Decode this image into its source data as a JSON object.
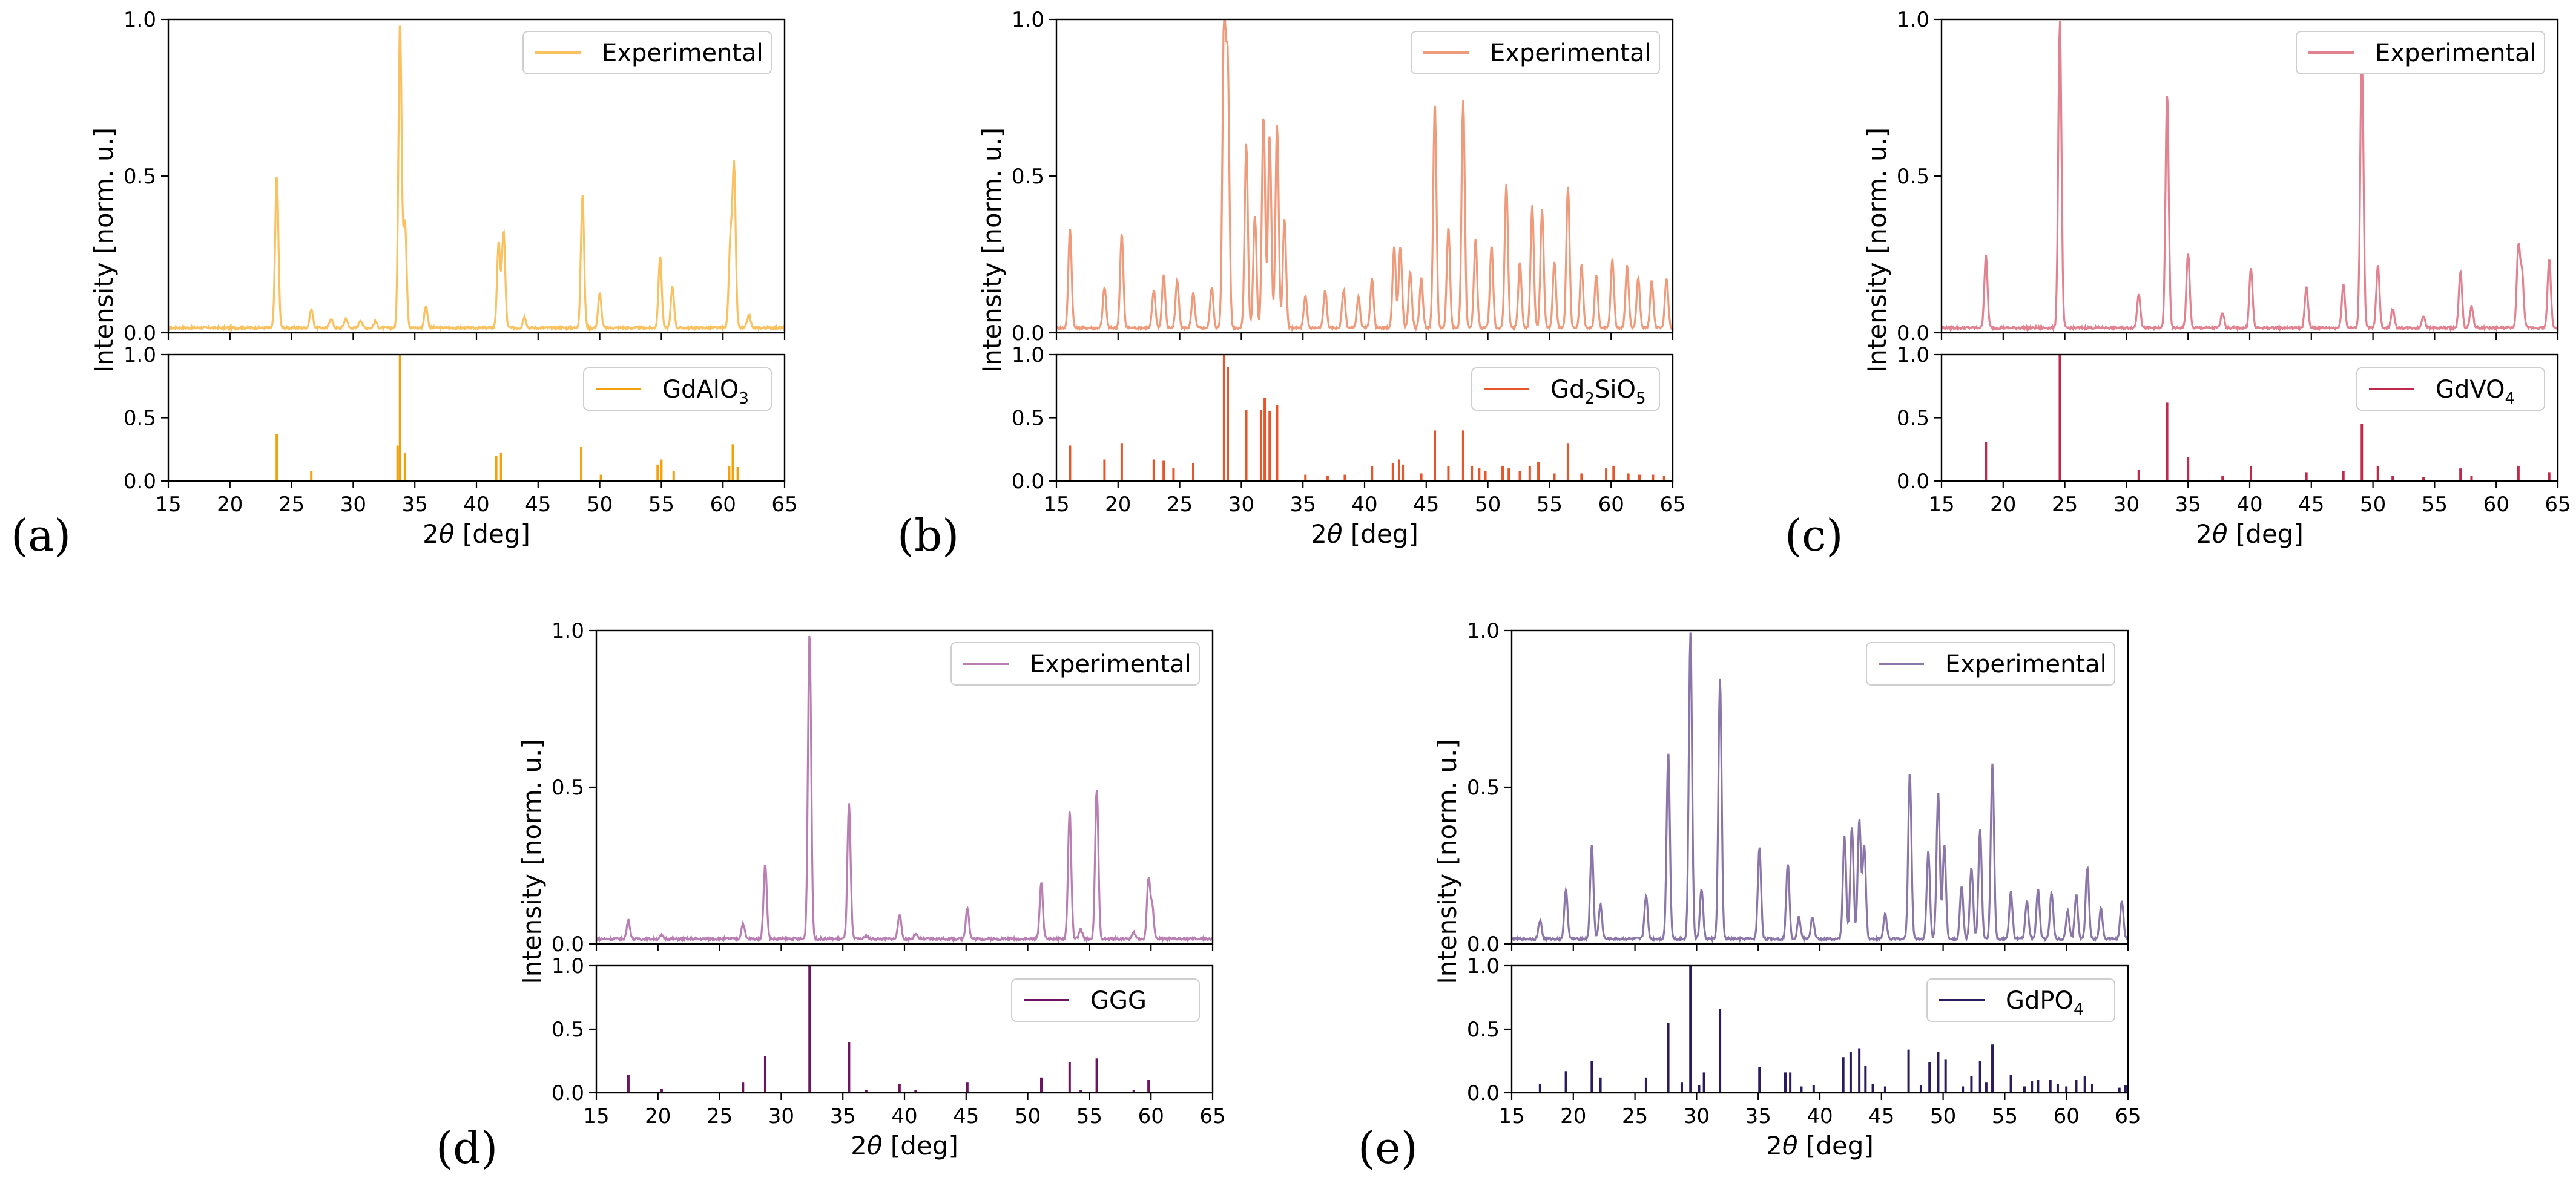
{
  "figure": {
    "x_range": [
      15,
      65
    ],
    "x_ticks": [
      15,
      20,
      25,
      30,
      35,
      40,
      45,
      50,
      55,
      60,
      65
    ],
    "y_ticks": [
      0.0,
      0.5,
      1.0
    ],
    "y_tick_labels": [
      "0.0",
      "0.5",
      "1.0"
    ],
    "y_label": "Intensity [norm. u.]",
    "x_label_prefix": "2",
    "x_label_theta": "θ",
    "x_label_suffix": " [deg]"
  },
  "chart_data": [
    {
      "id": "a",
      "panel_label": "(a)",
      "type": "line",
      "color_exp": "#f9c160",
      "color_ref": "#f3a10b",
      "exp_legend": "Experimental",
      "ref_legend": {
        "main": "GdAlO",
        "sub": "3",
        "tail": ""
      },
      "xlim": [
        15,
        65
      ],
      "ylim": [
        0,
        1
      ],
      "exp_peaks": [
        [
          23.8,
          0.49
        ],
        [
          26.6,
          0.06
        ],
        [
          28.2,
          0.03
        ],
        [
          29.4,
          0.03
        ],
        [
          30.6,
          0.025
        ],
        [
          31.8,
          0.02
        ],
        [
          33.8,
          0.98
        ],
        [
          34.2,
          0.34
        ],
        [
          35.9,
          0.07
        ],
        [
          41.8,
          0.27
        ],
        [
          42.2,
          0.31
        ],
        [
          43.9,
          0.035
        ],
        [
          48.6,
          0.42
        ],
        [
          50.0,
          0.11
        ],
        [
          54.9,
          0.23
        ],
        [
          55.9,
          0.13
        ],
        [
          60.6,
          0.27
        ],
        [
          60.9,
          0.51
        ],
        [
          62.1,
          0.04
        ]
      ],
      "ref_lines": [
        [
          23.8,
          0.37
        ],
        [
          26.6,
          0.08
        ],
        [
          33.6,
          0.28
        ],
        [
          33.8,
          1.0
        ],
        [
          34.2,
          0.22
        ],
        [
          41.6,
          0.2
        ],
        [
          42.0,
          0.22
        ],
        [
          48.5,
          0.27
        ],
        [
          50.1,
          0.05
        ],
        [
          54.7,
          0.13
        ],
        [
          55.0,
          0.17
        ],
        [
          56.0,
          0.08
        ],
        [
          60.5,
          0.12
        ],
        [
          60.8,
          0.29
        ],
        [
          61.2,
          0.11
        ]
      ]
    },
    {
      "id": "b",
      "panel_label": "(b)",
      "type": "line",
      "color_exp": "#ef9a7a",
      "color_ref": "#e8552a",
      "exp_legend": "Experimental",
      "ref_legend": {
        "main": "Gd",
        "sub": "2",
        "tail": "SiO",
        "sub2": "5"
      },
      "xlim": [
        15,
        65
      ],
      "ylim": [
        0,
        1
      ],
      "exp_peaks": [
        [
          16.1,
          0.32
        ],
        [
          18.9,
          0.13
        ],
        [
          20.3,
          0.3
        ],
        [
          22.9,
          0.12
        ],
        [
          23.7,
          0.17
        ],
        [
          24.8,
          0.15
        ],
        [
          26.1,
          0.11
        ],
        [
          27.6,
          0.13
        ],
        [
          28.6,
          0.98
        ],
        [
          28.9,
          0.82
        ],
        [
          30.4,
          0.59
        ],
        [
          31.1,
          0.36
        ],
        [
          31.8,
          0.68
        ],
        [
          32.3,
          0.62
        ],
        [
          32.9,
          0.65
        ],
        [
          33.5,
          0.35
        ],
        [
          35.2,
          0.1
        ],
        [
          36.8,
          0.12
        ],
        [
          38.3,
          0.12
        ],
        [
          39.5,
          0.1
        ],
        [
          40.6,
          0.16
        ],
        [
          42.4,
          0.26
        ],
        [
          42.9,
          0.26
        ],
        [
          43.7,
          0.18
        ],
        [
          44.6,
          0.16
        ],
        [
          45.7,
          0.72
        ],
        [
          46.8,
          0.32
        ],
        [
          48.0,
          0.73
        ],
        [
          49.0,
          0.28
        ],
        [
          50.3,
          0.26
        ],
        [
          51.5,
          0.46
        ],
        [
          52.6,
          0.21
        ],
        [
          53.6,
          0.39
        ],
        [
          54.4,
          0.38
        ],
        [
          55.4,
          0.21
        ],
        [
          56.5,
          0.45
        ],
        [
          57.6,
          0.2
        ],
        [
          58.8,
          0.17
        ],
        [
          60.1,
          0.22
        ],
        [
          61.3,
          0.2
        ],
        [
          62.2,
          0.16
        ],
        [
          63.3,
          0.15
        ],
        [
          64.5,
          0.16
        ]
      ],
      "ref_lines": [
        [
          16.1,
          0.28
        ],
        [
          18.9,
          0.17
        ],
        [
          20.3,
          0.3
        ],
        [
          22.9,
          0.17
        ],
        [
          23.7,
          0.16
        ],
        [
          24.5,
          0.1
        ],
        [
          26.1,
          0.14
        ],
        [
          28.6,
          1.0
        ],
        [
          28.9,
          0.9
        ],
        [
          30.4,
          0.56
        ],
        [
          31.6,
          0.56
        ],
        [
          31.9,
          0.66
        ],
        [
          32.3,
          0.55
        ],
        [
          32.9,
          0.6
        ],
        [
          35.2,
          0.05
        ],
        [
          37.0,
          0.04
        ],
        [
          38.4,
          0.05
        ],
        [
          40.6,
          0.12
        ],
        [
          42.3,
          0.14
        ],
        [
          42.8,
          0.17
        ],
        [
          43.1,
          0.13
        ],
        [
          44.6,
          0.06
        ],
        [
          45.7,
          0.4
        ],
        [
          46.8,
          0.12
        ],
        [
          48.0,
          0.4
        ],
        [
          48.7,
          0.12
        ],
        [
          49.3,
          0.1
        ],
        [
          49.8,
          0.08
        ],
        [
          51.2,
          0.12
        ],
        [
          51.7,
          0.1
        ],
        [
          52.6,
          0.08
        ],
        [
          53.4,
          0.12
        ],
        [
          54.1,
          0.15
        ],
        [
          55.4,
          0.06
        ],
        [
          56.5,
          0.3
        ],
        [
          57.6,
          0.06
        ],
        [
          59.6,
          0.1
        ],
        [
          60.2,
          0.12
        ],
        [
          61.4,
          0.06
        ],
        [
          62.3,
          0.05
        ],
        [
          63.4,
          0.05
        ],
        [
          64.3,
          0.04
        ]
      ]
    },
    {
      "id": "c",
      "panel_label": "(c)",
      "type": "line",
      "color_exp": "#e2818f",
      "color_ref": "#c0294a",
      "exp_legend": "Experimental",
      "ref_legend": {
        "main": "GdVO",
        "sub": "4",
        "tail": ""
      },
      "xlim": [
        15,
        65
      ],
      "ylim": [
        0,
        1
      ],
      "exp_peaks": [
        [
          18.6,
          0.23
        ],
        [
          24.6,
          0.98
        ],
        [
          31.0,
          0.11
        ],
        [
          33.3,
          0.75
        ],
        [
          35.0,
          0.24
        ],
        [
          37.8,
          0.05
        ],
        [
          40.1,
          0.19
        ],
        [
          44.6,
          0.13
        ],
        [
          47.6,
          0.14
        ],
        [
          49.1,
          0.88
        ],
        [
          50.4,
          0.2
        ],
        [
          51.6,
          0.06
        ],
        [
          54.1,
          0.04
        ],
        [
          57.1,
          0.18
        ],
        [
          58.0,
          0.07
        ],
        [
          61.8,
          0.26
        ],
        [
          62.1,
          0.17
        ],
        [
          64.3,
          0.22
        ]
      ],
      "ref_lines": [
        [
          18.6,
          0.31
        ],
        [
          24.6,
          1.0
        ],
        [
          31.0,
          0.09
        ],
        [
          33.3,
          0.62
        ],
        [
          35.0,
          0.19
        ],
        [
          37.8,
          0.04
        ],
        [
          40.1,
          0.12
        ],
        [
          44.6,
          0.07
        ],
        [
          47.6,
          0.08
        ],
        [
          49.1,
          0.45
        ],
        [
          50.4,
          0.12
        ],
        [
          51.6,
          0.04
        ],
        [
          54.1,
          0.03
        ],
        [
          57.1,
          0.1
        ],
        [
          58.0,
          0.04
        ],
        [
          61.8,
          0.12
        ],
        [
          64.3,
          0.07
        ]
      ]
    },
    {
      "id": "d",
      "panel_label": "(d)",
      "type": "line",
      "color_exp": "#b97fb3",
      "color_ref": "#6d1561",
      "exp_legend": "Experimental",
      "ref_legend": {
        "main": "GGG",
        "sub": "",
        "tail": ""
      },
      "xlim": [
        15,
        65
      ],
      "ylim": [
        0,
        1
      ],
      "exp_peaks": [
        [
          17.6,
          0.06
        ],
        [
          20.3,
          0.01
        ],
        [
          26.9,
          0.05
        ],
        [
          28.7,
          0.24
        ],
        [
          32.3,
          0.98
        ],
        [
          35.5,
          0.43
        ],
        [
          36.9,
          0.01
        ],
        [
          39.6,
          0.08
        ],
        [
          40.9,
          0.015
        ],
        [
          45.1,
          0.1
        ],
        [
          51.1,
          0.18
        ],
        [
          53.4,
          0.41
        ],
        [
          54.3,
          0.03
        ],
        [
          55.6,
          0.48
        ],
        [
          58.6,
          0.02
        ],
        [
          59.8,
          0.19
        ],
        [
          60.1,
          0.1
        ]
      ],
      "ref_lines": [
        [
          17.6,
          0.14
        ],
        [
          20.3,
          0.03
        ],
        [
          26.9,
          0.08
        ],
        [
          28.7,
          0.29
        ],
        [
          32.3,
          1.0
        ],
        [
          35.5,
          0.4
        ],
        [
          36.9,
          0.02
        ],
        [
          39.6,
          0.07
        ],
        [
          40.9,
          0.02
        ],
        [
          45.1,
          0.08
        ],
        [
          51.1,
          0.12
        ],
        [
          53.4,
          0.24
        ],
        [
          54.3,
          0.02
        ],
        [
          55.6,
          0.27
        ],
        [
          58.6,
          0.02
        ],
        [
          59.8,
          0.1
        ]
      ]
    },
    {
      "id": "e",
      "panel_label": "(e)",
      "type": "line",
      "color_exp": "#8a76a8",
      "color_ref": "#2b1a5e",
      "exp_legend": "Experimental",
      "ref_legend": {
        "main": "GdPO",
        "sub": "4",
        "tail": ""
      },
      "xlim": [
        15,
        65
      ],
      "ylim": [
        0,
        1
      ],
      "exp_peaks": [
        [
          17.3,
          0.06
        ],
        [
          19.4,
          0.16
        ],
        [
          21.5,
          0.3
        ],
        [
          22.2,
          0.11
        ],
        [
          25.9,
          0.14
        ],
        [
          27.7,
          0.6
        ],
        [
          29.5,
          0.98
        ],
        [
          30.4,
          0.16
        ],
        [
          31.9,
          0.83
        ],
        [
          35.1,
          0.29
        ],
        [
          37.4,
          0.24
        ],
        [
          38.3,
          0.07
        ],
        [
          39.4,
          0.07
        ],
        [
          42.0,
          0.33
        ],
        [
          42.6,
          0.36
        ],
        [
          43.2,
          0.38
        ],
        [
          43.6,
          0.3
        ],
        [
          45.3,
          0.08
        ],
        [
          47.3,
          0.53
        ],
        [
          48.8,
          0.28
        ],
        [
          49.6,
          0.47
        ],
        [
          50.1,
          0.3
        ],
        [
          51.5,
          0.17
        ],
        [
          52.3,
          0.23
        ],
        [
          53.0,
          0.35
        ],
        [
          54.0,
          0.56
        ],
        [
          55.5,
          0.15
        ],
        [
          56.8,
          0.12
        ],
        [
          57.7,
          0.16
        ],
        [
          58.8,
          0.15
        ],
        [
          60.1,
          0.09
        ],
        [
          60.8,
          0.14
        ],
        [
          61.7,
          0.23
        ],
        [
          62.8,
          0.1
        ],
        [
          64.5,
          0.12
        ]
      ],
      "ref_lines": [
        [
          17.3,
          0.07
        ],
        [
          19.4,
          0.17
        ],
        [
          21.5,
          0.25
        ],
        [
          22.2,
          0.12
        ],
        [
          25.9,
          0.12
        ],
        [
          27.7,
          0.55
        ],
        [
          28.8,
          0.08
        ],
        [
          29.5,
          1.0
        ],
        [
          30.2,
          0.06
        ],
        [
          30.6,
          0.16
        ],
        [
          31.9,
          0.66
        ],
        [
          35.1,
          0.2
        ],
        [
          37.2,
          0.16
        ],
        [
          37.6,
          0.16
        ],
        [
          38.5,
          0.05
        ],
        [
          39.5,
          0.06
        ],
        [
          41.9,
          0.28
        ],
        [
          42.5,
          0.32
        ],
        [
          43.2,
          0.35
        ],
        [
          43.7,
          0.21
        ],
        [
          44.3,
          0.07
        ],
        [
          45.3,
          0.05
        ],
        [
          47.2,
          0.34
        ],
        [
          48.2,
          0.06
        ],
        [
          48.9,
          0.24
        ],
        [
          49.6,
          0.32
        ],
        [
          50.2,
          0.26
        ],
        [
          51.6,
          0.05
        ],
        [
          52.3,
          0.13
        ],
        [
          53.0,
          0.25
        ],
        [
          53.5,
          0.08
        ],
        [
          54.0,
          0.38
        ],
        [
          55.5,
          0.14
        ],
        [
          56.6,
          0.05
        ],
        [
          57.2,
          0.09
        ],
        [
          57.7,
          0.1
        ],
        [
          58.7,
          0.1
        ],
        [
          59.3,
          0.07
        ],
        [
          60.0,
          0.05
        ],
        [
          60.8,
          0.1
        ],
        [
          61.5,
          0.13
        ],
        [
          62.1,
          0.07
        ],
        [
          64.3,
          0.04
        ],
        [
          64.8,
          0.06
        ]
      ]
    }
  ]
}
